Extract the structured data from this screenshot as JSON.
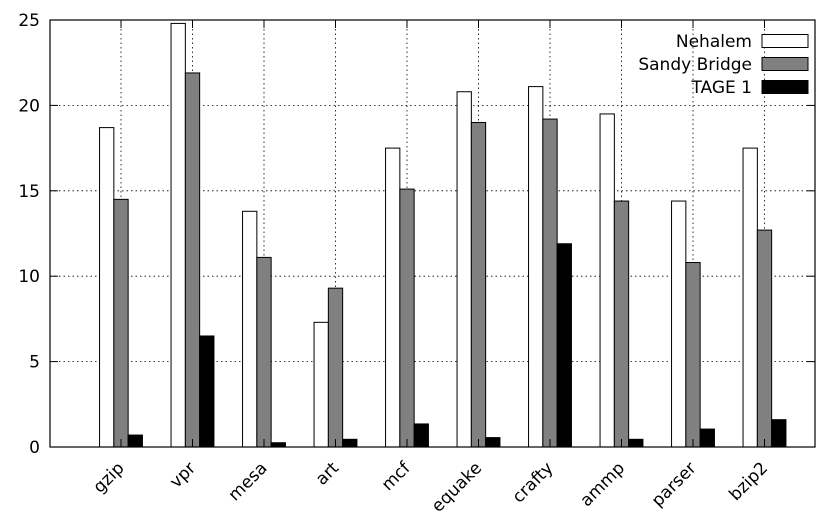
{
  "chart_data": {
    "type": "bar",
    "categories": [
      "gzip",
      "vpr",
      "mesa",
      "art",
      "mcf",
      "equake",
      "crafty",
      "ammp",
      "parser",
      "bzip2"
    ],
    "series": [
      {
        "name": "Nehalem",
        "color": "#ffffff",
        "values": [
          18.7,
          24.8,
          13.8,
          7.3,
          17.5,
          20.8,
          21.1,
          19.5,
          14.4,
          17.5
        ]
      },
      {
        "name": "Sandy Bridge",
        "color": "#808080",
        "values": [
          14.5,
          21.9,
          11.1,
          9.3,
          15.1,
          19.0,
          19.2,
          14.4,
          10.8,
          12.7
        ]
      },
      {
        "name": "TAGE 1",
        "color": "#000000",
        "values": [
          0.7,
          6.5,
          0.25,
          0.45,
          1.35,
          0.55,
          11.9,
          0.45,
          1.05,
          1.6
        ]
      }
    ],
    "yticks": [
      "0",
      "5",
      "10",
      "15",
      "20",
      "25"
    ],
    "ylim": [
      0,
      25
    ],
    "grid": true,
    "legend_position": "top-right"
  }
}
